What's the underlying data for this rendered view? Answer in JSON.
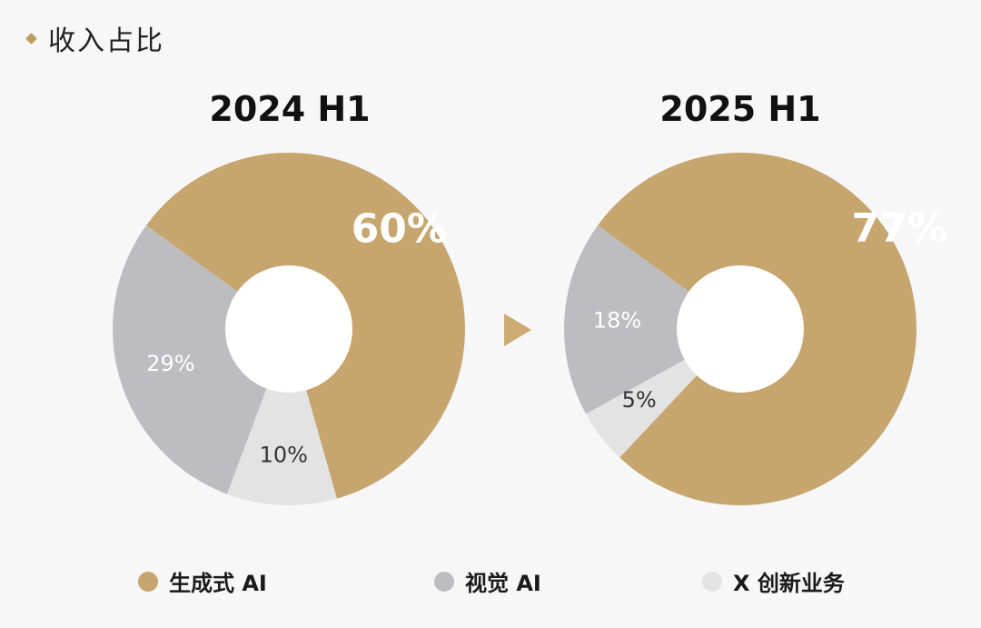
{
  "header": {
    "title": "收入占比"
  },
  "colors": {
    "accent": "#c6a56e",
    "gen_ai": "#c6a56e",
    "vision_ai": "#bdbdbf",
    "x_innovation": "#e3e3e3",
    "hole": "#ffffff"
  },
  "legend": [
    {
      "name": "生成式 AI",
      "color": "#c6a56e"
    },
    {
      "name": "视觉 AI",
      "color": "#bdbdbf"
    },
    {
      "name": "X 创新业务",
      "color": "#e3e3e3"
    }
  ],
  "chart_data": [
    {
      "type": "pie",
      "title": "2024 H1",
      "slices": [
        {
          "name": "生成式 AI",
          "value": 60,
          "label": "60%"
        },
        {
          "name": "X 创新业务",
          "value": 10,
          "label": "10%"
        },
        {
          "name": "视觉 AI",
          "value": 29,
          "label": "29%"
        }
      ]
    },
    {
      "type": "pie",
      "title": "2025 H1",
      "slices": [
        {
          "name": "生成式 AI",
          "value": 77,
          "label": "77%"
        },
        {
          "name": "X 创新业务",
          "value": 5,
          "label": "5%"
        },
        {
          "name": "视觉 AI",
          "value": 18,
          "label": "18%"
        }
      ]
    }
  ]
}
